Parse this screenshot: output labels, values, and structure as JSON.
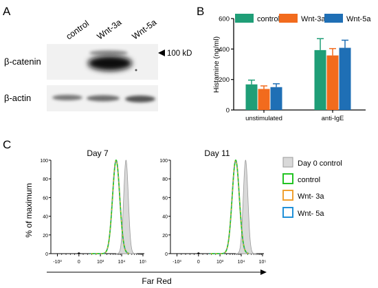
{
  "panels": {
    "a": {
      "letter": "A",
      "lanes": [
        "control",
        "Wnt-3a",
        "Wnt-5a"
      ],
      "rows": [
        "β-catenin",
        "β-actin"
      ],
      "marker": "100 kD"
    },
    "b": {
      "letter": "B"
    },
    "c": {
      "letter": "C"
    }
  },
  "chart_data": [
    {
      "type": "bar",
      "panel": "B",
      "ylabel": "Histamine (ng/ml)",
      "ylim": [
        0,
        600
      ],
      "yticks": [
        0,
        200,
        400,
        600
      ],
      "categories": [
        "unstimulated",
        "anti-IgE"
      ],
      "series": [
        {
          "name": "control",
          "color": "#1f9e77",
          "values": [
            168,
            393
          ],
          "errors": [
            28,
            75
          ]
        },
        {
          "name": "Wnt-3a",
          "color": "#f26b1d",
          "values": [
            138,
            358
          ],
          "errors": [
            20,
            45
          ]
        },
        {
          "name": "Wnt-5a",
          "color": "#1f6fb5",
          "values": [
            150,
            408
          ],
          "errors": [
            22,
            50
          ]
        }
      ],
      "legend": "top"
    },
    {
      "type": "line",
      "panel": "C",
      "xlabel": "Far Red",
      "ylabel": "% of maximum",
      "yticks": [
        0,
        20,
        40,
        60,
        80,
        100
      ],
      "xticks": [
        "-10³",
        "0",
        "10³",
        "10⁴",
        "10⁵"
      ],
      "subplots": [
        {
          "title": "Day 7",
          "reference_peak": 16000,
          "sample_peak": 5500
        },
        {
          "title": "Day 11",
          "reference_peak": 16000,
          "sample_peak": 5500
        }
      ],
      "series": [
        {
          "name": "Day 0 control",
          "color": "#bdbdbd",
          "fill": true
        },
        {
          "name": "control",
          "color": "#22c322"
        },
        {
          "name": "Wnt- 3a",
          "color": "#f0a030"
        },
        {
          "name": "Wnt- 5a",
          "color": "#2090d8"
        }
      ],
      "legend": "right"
    }
  ]
}
